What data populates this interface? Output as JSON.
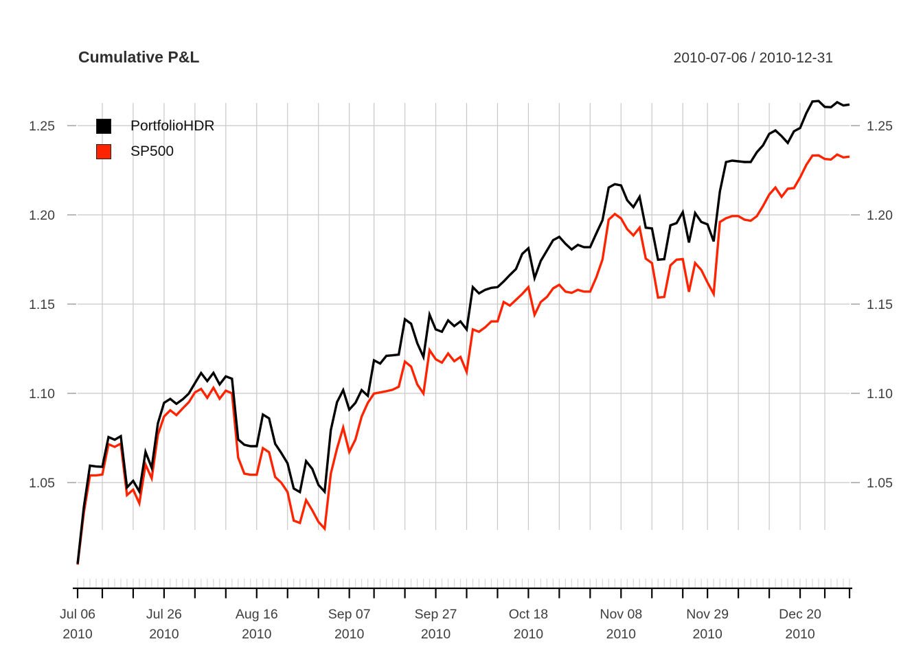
{
  "header": {
    "title": "Cumulative P&L",
    "date_range": "2010-07-06 / 2010-12-31"
  },
  "legend": {
    "position": "topleft",
    "items": [
      {
        "label": "PortfolioHDR",
        "color": "#000000"
      },
      {
        "label": "SP500",
        "color": "#ff2400"
      }
    ]
  },
  "colors": {
    "grid": "#c8c8c8",
    "axis": "#000000",
    "day_ticks": "#d8d8d8",
    "y_tick_dash": "#a0a0a0",
    "tick_text": "#3d3d3d"
  },
  "chart_data": {
    "type": "line",
    "title": "Cumulative P&L",
    "subtitle": "2010-07-06 / 2010-12-31",
    "grid": true,
    "legend_position": "topleft",
    "ylim": [
      0.995,
      1.267
    ],
    "y_ticks": [
      1.05,
      1.1,
      1.15,
      1.2,
      1.25
    ],
    "x": [
      "07-06",
      "07-07",
      "07-08",
      "07-09",
      "07-12",
      "07-13",
      "07-14",
      "07-15",
      "07-16",
      "07-19",
      "07-20",
      "07-21",
      "07-22",
      "07-23",
      "07-26",
      "07-27",
      "07-28",
      "07-29",
      "07-30",
      "08-02",
      "08-03",
      "08-04",
      "08-05",
      "08-06",
      "08-09",
      "08-10",
      "08-11",
      "08-12",
      "08-13",
      "08-16",
      "08-17",
      "08-18",
      "08-19",
      "08-20",
      "08-23",
      "08-24",
      "08-25",
      "08-26",
      "08-27",
      "08-30",
      "08-31",
      "09-01",
      "09-02",
      "09-03",
      "09-07",
      "09-08",
      "09-09",
      "09-10",
      "09-13",
      "09-14",
      "09-15",
      "09-16",
      "09-17",
      "09-20",
      "09-21",
      "09-22",
      "09-23",
      "09-24",
      "09-27",
      "09-28",
      "09-29",
      "09-30",
      "10-01",
      "10-04",
      "10-05",
      "10-06",
      "10-07",
      "10-08",
      "10-11",
      "10-12",
      "10-13",
      "10-14",
      "10-15",
      "10-18",
      "10-19",
      "10-20",
      "10-21",
      "10-22",
      "10-25",
      "10-26",
      "10-27",
      "10-28",
      "10-29",
      "11-01",
      "11-02",
      "11-03",
      "11-04",
      "11-05",
      "11-08",
      "11-09",
      "11-10",
      "11-11",
      "11-12",
      "11-15",
      "11-16",
      "11-17",
      "11-18",
      "11-19",
      "11-22",
      "11-23",
      "11-24",
      "11-26",
      "11-29",
      "11-30",
      "12-01",
      "12-02",
      "12-03",
      "12-06",
      "12-07",
      "12-08",
      "12-09",
      "12-10",
      "12-13",
      "12-14",
      "12-15",
      "12-16",
      "12-17",
      "12-20",
      "12-21",
      "12-22",
      "12-23",
      "12-27",
      "12-28",
      "12-29",
      "12-30",
      "12-31"
    ],
    "x_labels": [
      {
        "index": 0,
        "text": "Jul 06",
        "year": "2010"
      },
      {
        "index": 14,
        "text": "Jul 26",
        "year": "2010"
      },
      {
        "index": 29,
        "text": "Aug 16",
        "year": "2010"
      },
      {
        "index": 44,
        "text": "Sep 07",
        "year": "2010"
      },
      {
        "index": 58,
        "text": "Sep 27",
        "year": "2010"
      },
      {
        "index": 73,
        "text": "Oct 18",
        "year": "2010"
      },
      {
        "index": 88,
        "text": "Nov 08",
        "year": "2010"
      },
      {
        "index": 102,
        "text": "Nov 29",
        "year": "2010"
      },
      {
        "index": 117,
        "text": "Dec 20",
        "year": "2010"
      }
    ],
    "week_start_indices": [
      4,
      9,
      14,
      19,
      24,
      29,
      34,
      39,
      44,
      48,
      53,
      58,
      63,
      68,
      73,
      78,
      83,
      88,
      93,
      98,
      102,
      107,
      112,
      117,
      121
    ],
    "series": [
      {
        "name": "PortfolioHDR",
        "color": "#000000",
        "values": [
          1.0045,
          1.036,
          1.0595,
          1.059,
          1.0588,
          1.0755,
          1.074,
          1.076,
          1.0473,
          1.051,
          1.045,
          1.0672,
          1.0583,
          1.0832,
          1.0947,
          1.0969,
          1.0941,
          1.0966,
          1.0999,
          1.1057,
          1.1114,
          1.1069,
          1.1115,
          1.105,
          1.1095,
          1.1082,
          1.0742,
          1.0712,
          1.0704,
          1.0704,
          1.0881,
          1.086,
          1.0717,
          1.0665,
          1.0608,
          1.0467,
          1.0447,
          1.062,
          1.0577,
          1.0487,
          1.0449,
          1.0794,
          1.095,
          1.1018,
          1.0909,
          1.0947,
          1.1018,
          1.0986,
          1.1185,
          1.1167,
          1.121,
          1.1213,
          1.1217,
          1.1415,
          1.139,
          1.1281,
          1.1204,
          1.1441,
          1.1358,
          1.1345,
          1.1409,
          1.1377,
          1.1403,
          1.1358,
          1.1595,
          1.156,
          1.158,
          1.1591,
          1.1595,
          1.1627,
          1.1663,
          1.1697,
          1.1781,
          1.1813,
          1.1646,
          1.1742,
          1.18,
          1.1858,
          1.1877,
          1.1838,
          1.1806,
          1.1832,
          1.1819,
          1.1819,
          1.1896,
          1.197,
          1.2153,
          1.2172,
          1.2165,
          1.2082,
          1.2043,
          1.2101,
          1.1928,
          1.1924,
          1.1749,
          1.1752,
          1.1941,
          1.1954,
          1.2015,
          1.1845,
          1.201,
          1.196,
          1.1947,
          1.1851,
          1.213,
          1.2296,
          1.2304,
          1.23,
          1.2296,
          1.2296,
          1.2351,
          1.239,
          1.2454,
          1.2473,
          1.2441,
          1.2403,
          1.2468,
          1.2487,
          1.257,
          1.2635,
          1.2638,
          1.2605,
          1.2603,
          1.2631,
          1.2613,
          1.2618
        ]
      },
      {
        "name": "SP500",
        "color": "#ff2400",
        "values": [
          1.004,
          1.033,
          1.054,
          1.054,
          1.0545,
          1.0715,
          1.07,
          1.0718,
          1.043,
          1.046,
          1.0384,
          1.0601,
          1.0524,
          1.0768,
          1.087,
          1.0905,
          1.0878,
          1.0915,
          1.095,
          1.1005,
          1.1025,
          1.0975,
          1.1031,
          1.097,
          1.1015,
          1.1,
          1.064,
          1.055,
          1.0544,
          1.0544,
          1.0693,
          1.067,
          1.0531,
          1.0499,
          1.0447,
          1.0287,
          1.0274,
          1.0402,
          1.0345,
          1.028,
          1.0242,
          1.055,
          1.069,
          1.0808,
          1.0672,
          1.0742,
          1.087,
          1.0947,
          1.0999,
          1.1005,
          1.1012,
          1.102,
          1.1037,
          1.1178,
          1.115,
          1.105,
          1.0999,
          1.1242,
          1.1191,
          1.1172,
          1.1223,
          1.118,
          1.1204,
          1.112,
          1.1358,
          1.1345,
          1.137,
          1.1403,
          1.1403,
          1.1512,
          1.1492,
          1.1524,
          1.1557,
          1.1595,
          1.144,
          1.1512,
          1.154,
          1.1588,
          1.1608,
          1.157,
          1.1563,
          1.158,
          1.157,
          1.157,
          1.165,
          1.175,
          1.1973,
          1.2005,
          1.198,
          1.192,
          1.1885,
          1.1928,
          1.1755,
          1.173,
          1.1537,
          1.154,
          1.1717,
          1.1749,
          1.1752,
          1.1569,
          1.173,
          1.1691,
          1.1621,
          1.1557,
          1.196,
          1.1981,
          1.1993,
          1.1993,
          1.1973,
          1.1967,
          1.1993,
          1.205,
          1.2114,
          1.2153,
          1.2101,
          1.2146,
          1.215,
          1.221,
          1.228,
          1.2332,
          1.2333,
          1.2313,
          1.231,
          1.2338,
          1.2322,
          1.2326
        ]
      }
    ]
  }
}
